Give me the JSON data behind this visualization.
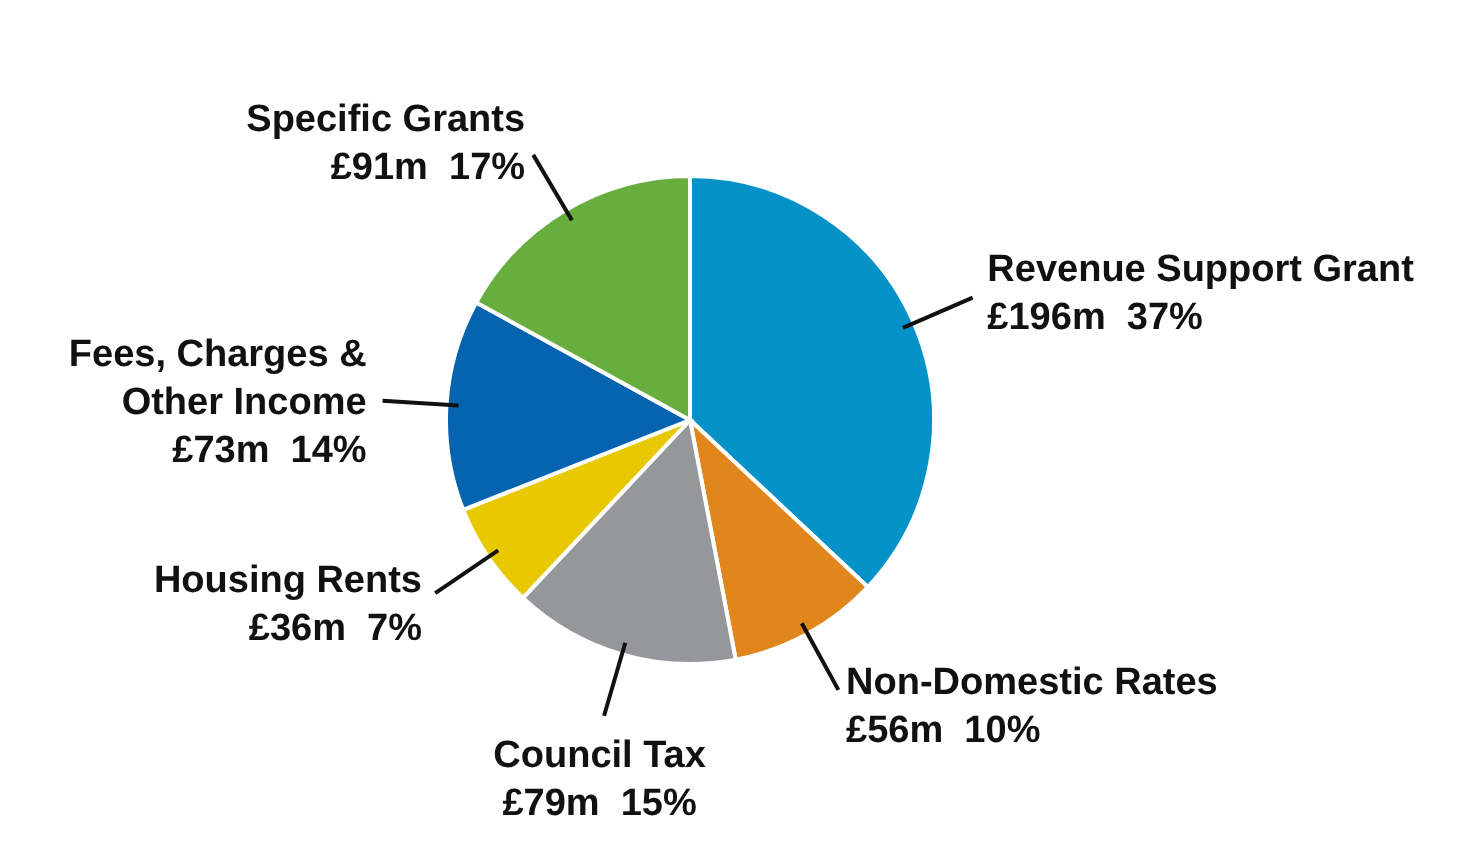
{
  "chart_data": {
    "type": "pie",
    "categories": [
      "Revenue Support Grant",
      "Non-Domestic Rates",
      "Council Tax",
      "Housing Rents",
      "Fees, Charges & Other Income",
      "Specific Grants"
    ],
    "values": [
      37,
      10,
      15,
      7,
      14,
      17
    ],
    "colors": [
      "#0592c8",
      "#e0861c",
      "#96979b",
      "#e8c800",
      "#0563b0",
      "#68ae3f"
    ],
    "value_labels": [
      "£196m  37%",
      "£56m  10%",
      "£79m  15%",
      "£36m  7%",
      "£73m  14%",
      "£91m  17%"
    ]
  }
}
